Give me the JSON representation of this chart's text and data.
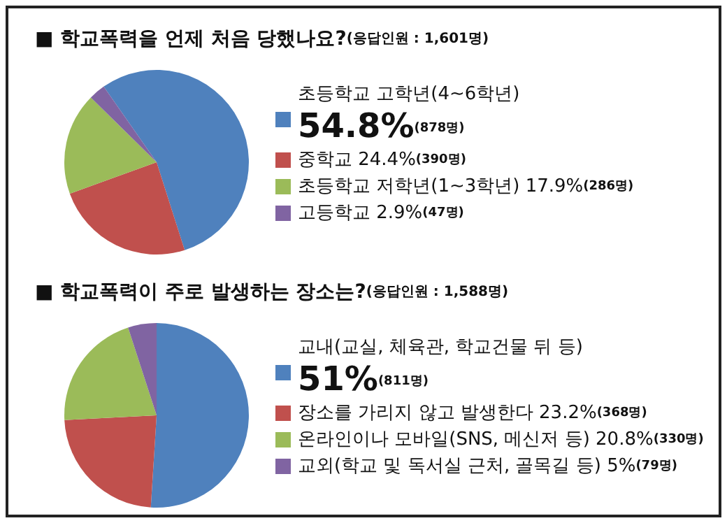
{
  "chart_data": [
    {
      "type": "pie",
      "title": "■ 학교폭력을 언제 처음 당했나요?",
      "subtitle": "(응답인원 : 1,601명)",
      "categories": [
        "초등학교 고학년(4~6학년)",
        "중학교",
        "초등학교 저학년(1~3학년)",
        "고등학교"
      ],
      "values": [
        54.8,
        24.4,
        17.9,
        2.9
      ],
      "colors": [
        "#4f81bd",
        "#c0504d",
        "#9bbb59",
        "#8064a2"
      ],
      "value_labels": [
        "54.8%(878명)",
        "24.4%(390명)",
        "17.9%(286명)",
        "2.9%(47명)"
      ],
      "legend": "right"
    },
    {
      "type": "pie",
      "title": "■ 학교폭력이 주로 발생하는 장소는?",
      "subtitle": "(응답인원 : 1,588명)",
      "categories": [
        "교내(교실, 체육관, 학교건물 뒤 등)",
        "장소를 가리지 않고 발생한다",
        "온라인이나 모바일(SNS, 메신저 등)",
        "교외(학교 및 독서실 근처, 골목길 등)"
      ],
      "values": [
        51,
        23.2,
        20.8,
        5
      ],
      "colors": [
        "#4f81bd",
        "#c0504d",
        "#9bbb59",
        "#8064a2"
      ],
      "value_labels": [
        "51%(811명)",
        "23.2%(368명)",
        "20.8%(330명)",
        "5%(79명)"
      ],
      "legend": "right"
    }
  ]
}
